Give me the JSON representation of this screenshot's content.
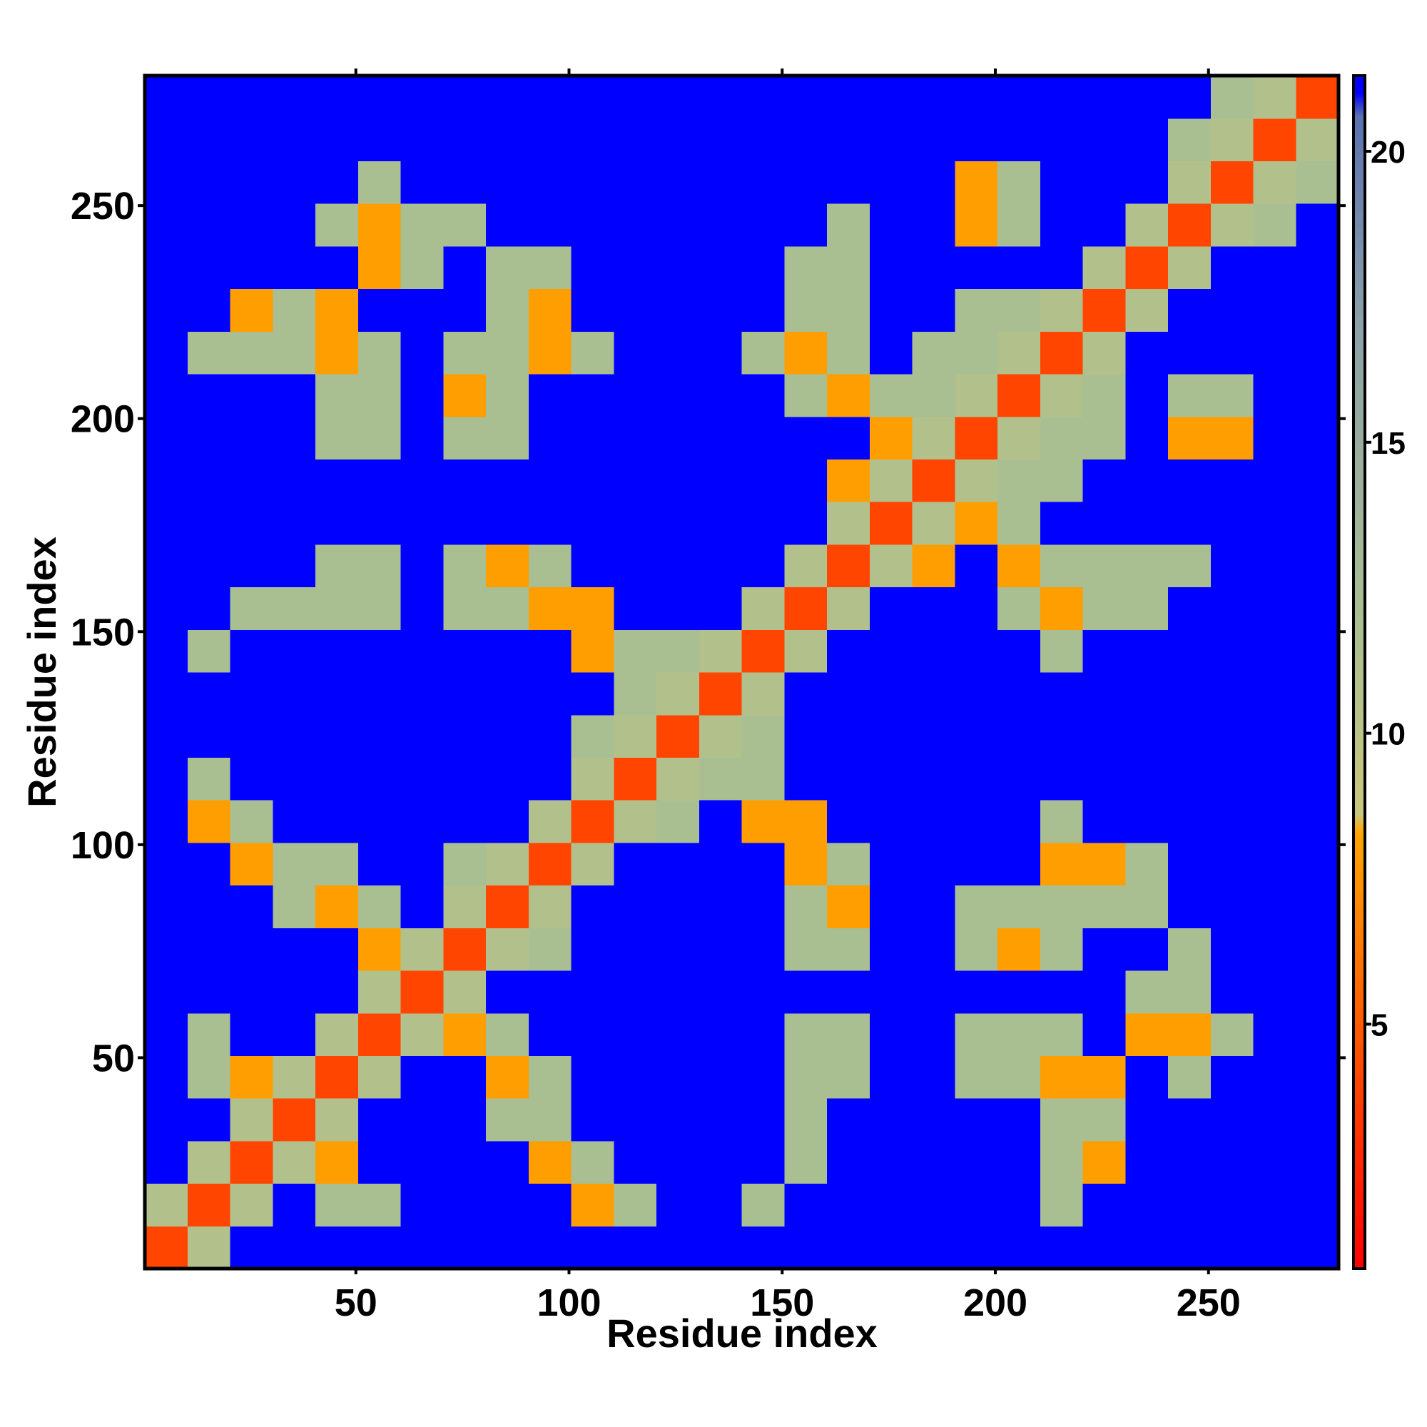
{
  "chart_data": {
    "type": "heatmap",
    "xlabel": "Residue index",
    "ylabel": "Residue index",
    "xlim": [
      0.5,
      280.5
    ],
    "ylim": [
      0.5,
      280.5
    ],
    "xticks": [
      50,
      100,
      150,
      200,
      250
    ],
    "yticks": [
      50,
      100,
      150,
      200,
      250
    ],
    "bins": [
      0.5,
      10.5,
      20.5,
      30.5,
      40.5,
      50.5,
      60.5,
      70.5,
      80.5,
      90.5,
      100.5,
      110.5,
      120.5,
      130.5,
      140.5,
      150.5,
      160.5,
      170.5,
      180.5,
      190.5,
      200.5,
      210.5,
      220.5,
      230.5,
      240.5,
      250.5,
      260.5,
      270.5,
      280.5
    ],
    "clim": [
      0.8,
      21.3
    ],
    "cticks": [
      5,
      10,
      15,
      20
    ],
    "colorscale": [
      {
        "value": 0.8,
        "color": "#ff0000"
      },
      {
        "value": 5,
        "color": "#ff5a00"
      },
      {
        "value": 8.3,
        "color": "#ffa500"
      },
      {
        "value": 8.6,
        "color": "#c9c77c"
      },
      {
        "value": 12,
        "color": "#a9bf92"
      },
      {
        "value": 17,
        "color": "#8da1a8"
      },
      {
        "value": 20.6,
        "color": "#5a72b0"
      },
      {
        "value": 21,
        "color": "#0000ff"
      }
    ],
    "values": [
      [
        4,
        11,
        21,
        21,
        21,
        21,
        21,
        21,
        21,
        21,
        21,
        21,
        21,
        21,
        21,
        21,
        21,
        21,
        21,
        21,
        21,
        21,
        21,
        21,
        21,
        21,
        21,
        21
      ],
      [
        11,
        4,
        11,
        21,
        12,
        12,
        21,
        21,
        21,
        21,
        8,
        12,
        21,
        21,
        12,
        21,
        21,
        21,
        21,
        21,
        21,
        12,
        21,
        21,
        21,
        21,
        21,
        21
      ],
      [
        21,
        11,
        4,
        11,
        8,
        21,
        21,
        21,
        21,
        8,
        12,
        21,
        21,
        21,
        21,
        12,
        21,
        21,
        21,
        21,
        21,
        12,
        8,
        21,
        21,
        21,
        21,
        21
      ],
      [
        21,
        21,
        11,
        4,
        11,
        21,
        21,
        21,
        12,
        12,
        21,
        21,
        21,
        21,
        21,
        12,
        21,
        21,
        21,
        21,
        21,
        12,
        12,
        21,
        21,
        21,
        21,
        21
      ],
      [
        21,
        12,
        8,
        11,
        4,
        11,
        21,
        21,
        8,
        12,
        21,
        21,
        21,
        21,
        21,
        12,
        12,
        21,
        21,
        12,
        12,
        8,
        8,
        21,
        12,
        21,
        21,
        21
      ],
      [
        21,
        12,
        21,
        21,
        11,
        4,
        11,
        8,
        12,
        21,
        21,
        21,
        21,
        21,
        21,
        12,
        12,
        21,
        21,
        12,
        12,
        12,
        21,
        8,
        8,
        12,
        21,
        21
      ],
      [
        21,
        21,
        21,
        21,
        21,
        11,
        4,
        11,
        21,
        21,
        21,
        21,
        21,
        21,
        21,
        21,
        21,
        21,
        21,
        21,
        21,
        21,
        21,
        12,
        12,
        21,
        21,
        21
      ],
      [
        21,
        21,
        21,
        21,
        21,
        8,
        11,
        4,
        11,
        12,
        21,
        21,
        21,
        21,
        21,
        12,
        12,
        21,
        21,
        12,
        8,
        12,
        21,
        21,
        12,
        21,
        21,
        21
      ],
      [
        21,
        21,
        21,
        12,
        8,
        12,
        21,
        11,
        4,
        11,
        21,
        21,
        21,
        21,
        21,
        12,
        8,
        21,
        21,
        12,
        12,
        12,
        12,
        12,
        21,
        21,
        21,
        21
      ],
      [
        21,
        21,
        8,
        12,
        12,
        21,
        21,
        12,
        11,
        4,
        11,
        21,
        21,
        21,
        21,
        8,
        12,
        21,
        21,
        21,
        21,
        8,
        8,
        12,
        21,
        21,
        21,
        21
      ],
      [
        21,
        8,
        12,
        21,
        21,
        21,
        21,
        21,
        21,
        11,
        4,
        11,
        12,
        21,
        8,
        8,
        21,
        21,
        21,
        21,
        21,
        12,
        21,
        21,
        21,
        21,
        21,
        21
      ],
      [
        21,
        12,
        21,
        21,
        21,
        21,
        21,
        21,
        21,
        21,
        11,
        4,
        11,
        12,
        12,
        21,
        21,
        21,
        21,
        21,
        21,
        21,
        21,
        21,
        21,
        21,
        21,
        21
      ],
      [
        21,
        21,
        21,
        21,
        21,
        21,
        21,
        21,
        21,
        21,
        12,
        11,
        4,
        11,
        12,
        21,
        21,
        21,
        21,
        21,
        21,
        21,
        21,
        21,
        21,
        21,
        21,
        21
      ],
      [
        21,
        21,
        21,
        21,
        21,
        21,
        21,
        21,
        21,
        21,
        21,
        12,
        11,
        4,
        11,
        21,
        21,
        21,
        21,
        21,
        21,
        21,
        21,
        21,
        21,
        21,
        21,
        21
      ],
      [
        21,
        12,
        21,
        21,
        21,
        21,
        21,
        21,
        21,
        21,
        8,
        12,
        12,
        11,
        4,
        11,
        21,
        21,
        21,
        21,
        21,
        12,
        21,
        21,
        21,
        21,
        21,
        21
      ],
      [
        21,
        21,
        12,
        12,
        12,
        12,
        21,
        12,
        12,
        8,
        8,
        21,
        21,
        21,
        11,
        4,
        11,
        21,
        21,
        21,
        12,
        8,
        12,
        12,
        21,
        21,
        21,
        21
      ],
      [
        21,
        21,
        21,
        21,
        12,
        12,
        21,
        12,
        8,
        12,
        21,
        21,
        21,
        21,
        21,
        11,
        4,
        11,
        8,
        21,
        8,
        12,
        12,
        12,
        12,
        21,
        21,
        21
      ],
      [
        21,
        21,
        21,
        21,
        21,
        21,
        21,
        21,
        21,
        21,
        21,
        21,
        21,
        21,
        21,
        21,
        11,
        4,
        11,
        8,
        12,
        21,
        21,
        21,
        21,
        21,
        21,
        21
      ],
      [
        21,
        21,
        21,
        21,
        21,
        21,
        21,
        21,
        21,
        21,
        21,
        21,
        21,
        21,
        21,
        21,
        8,
        11,
        4,
        11,
        12,
        12,
        21,
        21,
        21,
        21,
        21,
        21
      ],
      [
        21,
        21,
        21,
        21,
        12,
        12,
        21,
        12,
        12,
        21,
        21,
        21,
        21,
        21,
        21,
        21,
        21,
        8,
        11,
        4,
        11,
        12,
        12,
        21,
        8,
        8,
        21,
        21
      ],
      [
        21,
        21,
        21,
        21,
        12,
        12,
        21,
        8,
        12,
        21,
        21,
        21,
        21,
        21,
        21,
        12,
        8,
        12,
        12,
        11,
        4,
        11,
        12,
        21,
        12,
        12,
        21,
        21
      ],
      [
        21,
        12,
        12,
        12,
        8,
        12,
        21,
        12,
        12,
        8,
        12,
        21,
        21,
        21,
        12,
        8,
        12,
        21,
        12,
        12,
        11,
        4,
        11,
        21,
        21,
        21,
        21,
        21
      ],
      [
        21,
        21,
        8,
        12,
        8,
        21,
        21,
        21,
        12,
        8,
        21,
        21,
        21,
        21,
        21,
        12,
        12,
        21,
        21,
        12,
        12,
        11,
        4,
        11,
        21,
        21,
        21,
        21
      ],
      [
        21,
        21,
        21,
        21,
        21,
        8,
        12,
        21,
        12,
        12,
        21,
        21,
        21,
        21,
        21,
        12,
        12,
        21,
        21,
        21,
        21,
        21,
        11,
        4,
        11,
        21,
        21,
        21
      ],
      [
        21,
        21,
        21,
        21,
        12,
        8,
        12,
        12,
        21,
        21,
        21,
        21,
        21,
        21,
        21,
        21,
        12,
        21,
        21,
        8,
        12,
        21,
        21,
        11,
        4,
        11,
        12,
        21
      ],
      [
        21,
        21,
        21,
        21,
        21,
        12,
        21,
        21,
        21,
        21,
        21,
        21,
        21,
        21,
        21,
        21,
        21,
        21,
        21,
        8,
        12,
        21,
        21,
        21,
        11,
        4,
        11,
        12
      ],
      [
        21,
        21,
        21,
        21,
        21,
        21,
        21,
        21,
        21,
        21,
        21,
        21,
        21,
        21,
        21,
        21,
        21,
        21,
        21,
        21,
        21,
        21,
        21,
        21,
        12,
        11,
        4,
        11
      ],
      [
        21,
        21,
        21,
        21,
        21,
        21,
        21,
        21,
        21,
        21,
        21,
        21,
        21,
        21,
        21,
        21,
        21,
        21,
        21,
        21,
        21,
        21,
        21,
        21,
        21,
        12,
        11,
        4
      ]
    ]
  }
}
